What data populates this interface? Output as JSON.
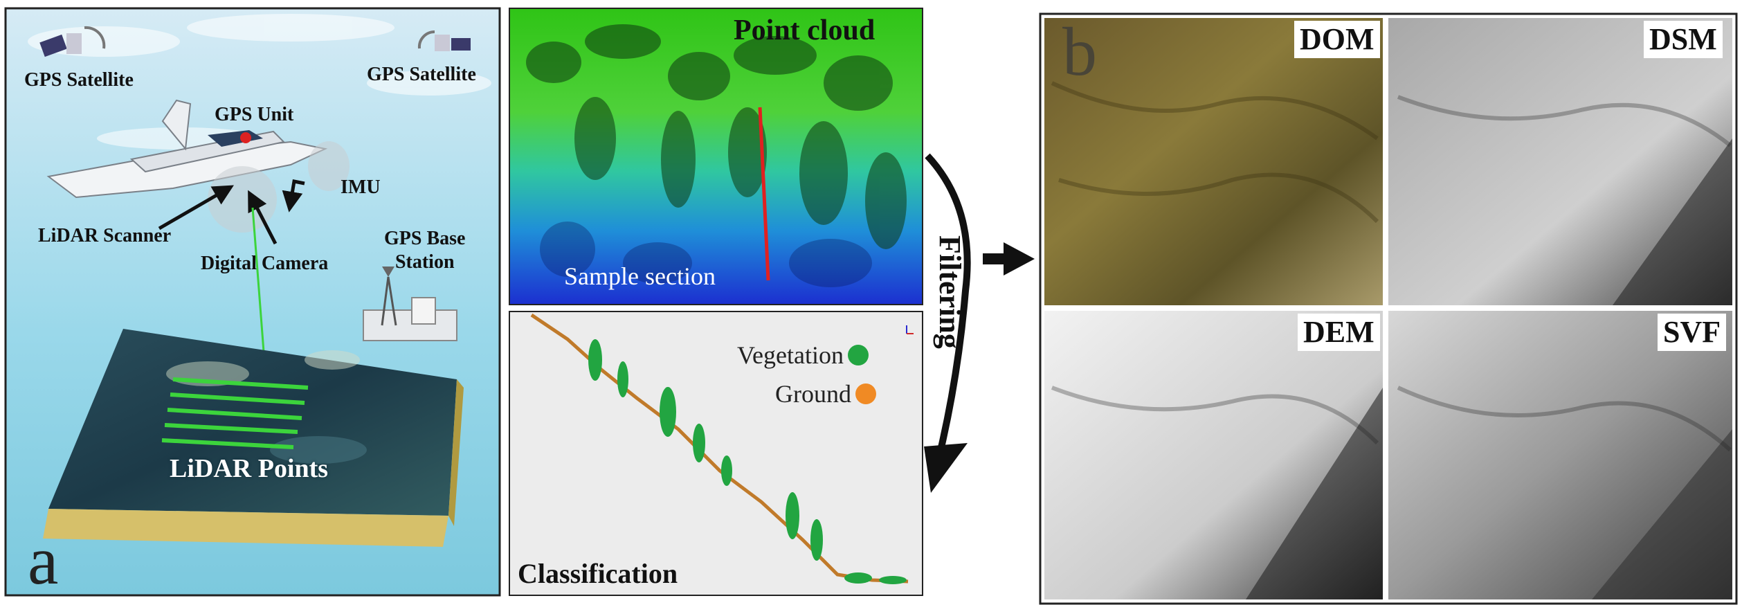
{
  "panel_a": {
    "panel_letter": "a",
    "labels": {
      "gps_satellite_left": "GPS Satellite",
      "gps_satellite_right": "GPS Satellite",
      "gps_unit": "GPS Unit",
      "imu": "IMU",
      "lidar_scanner": "LiDAR Scanner",
      "digital_camera": "Digital Camera",
      "gps_base_station": "GPS Base\nStation",
      "lidar_points": "LiDAR Points"
    }
  },
  "point_cloud_panel": {
    "title": "Point cloud",
    "sample_section": "Sample section"
  },
  "classification_panel": {
    "title": "Classification",
    "legend": [
      {
        "label": "Vegetation",
        "color": "#22a541"
      },
      {
        "label": "Ground",
        "color": "#f08a24"
      }
    ]
  },
  "process_label": "Filtering",
  "panel_b": {
    "panel_letter": "b",
    "tiles": [
      "DOM",
      "DSM",
      "DEM",
      "SVF"
    ]
  },
  "colors": {
    "sky_top": "#cfe6f2",
    "sky_bottom": "#8fd3e6",
    "point_cloud_green": "#2ec21a",
    "point_cloud_blue": "#1a3fd6",
    "sample_line": "#e02020",
    "classification_bg": "#ececec"
  }
}
